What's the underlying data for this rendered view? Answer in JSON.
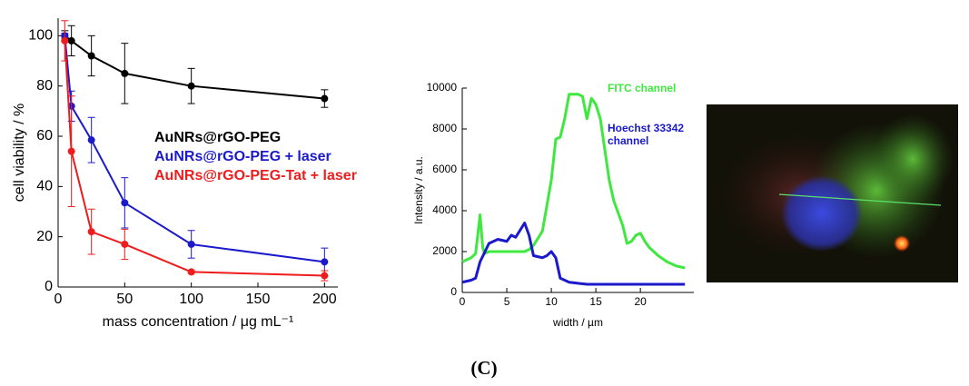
{
  "chart_data": [
    {
      "type": "line",
      "x": [
        5,
        10,
        25,
        50,
        100,
        200
      ],
      "xlabel": "mass concentration / μg mL⁻¹",
      "ylabel": "cell viability / %",
      "xlim": [
        0,
        210
      ],
      "ylim": [
        0,
        107
      ],
      "xticks": [
        0,
        50,
        100,
        150,
        200
      ],
      "yticks": [
        0,
        20,
        40,
        60,
        80,
        100
      ],
      "markers": true,
      "series": [
        {
          "name": "AuNRs@rGO-PEG",
          "color": "#000000",
          "values": [
            100,
            98,
            92,
            85,
            80,
            75
          ],
          "errors": [
            2,
            6,
            8,
            12,
            7,
            3.5
          ]
        },
        {
          "name": "AuNRs@rGO-PEG + laser",
          "color": "#1a1acc",
          "values": [
            100,
            72,
            58.5,
            33.5,
            17,
            10
          ],
          "errors": [
            1,
            6,
            9,
            10,
            5.5,
            5.5
          ]
        },
        {
          "name": "AuNRs@rGO-PEG-Tat + laser",
          "color": "#ee1c1c",
          "values": [
            98,
            54,
            22,
            17,
            6,
            4.5
          ],
          "errors": [
            8,
            22,
            9,
            6,
            0.5,
            2
          ]
        }
      ]
    },
    {
      "type": "line",
      "xlabel": "width / µm",
      "ylabel": "Intensity  / a.u.",
      "xlim": [
        0,
        26
      ],
      "ylim": [
        0,
        10000
      ],
      "xticks": [
        0,
        5,
        10,
        15,
        20
      ],
      "yticks": [
        0,
        2000,
        4000,
        6000,
        8000,
        10000
      ],
      "markers": false,
      "series": [
        {
          "name": "FITC channel",
          "color": "#3fe83f",
          "x": [
            0,
            0.5,
            1,
            1.5,
            2,
            2.3,
            2.5,
            3,
            4,
            5,
            6,
            7,
            7.5,
            8,
            9,
            10,
            10.5,
            11,
            11.5,
            12,
            13,
            13.5,
            14,
            14.5,
            15,
            15.5,
            16,
            16.5,
            17,
            18,
            18.5,
            19,
            19.5,
            20,
            20.5,
            21,
            22,
            23,
            24,
            25
          ],
          "values": [
            1500,
            1600,
            1700,
            1900,
            3800,
            2200,
            1900,
            2000,
            2000,
            2000,
            2000,
            2000,
            2100,
            2300,
            3000,
            5500,
            7500,
            7600,
            8500,
            9700,
            9700,
            9600,
            8500,
            9500,
            9200,
            8500,
            7000,
            5500,
            4500,
            3300,
            2400,
            2500,
            2800,
            2900,
            2500,
            2200,
            1800,
            1500,
            1300,
            1200
          ]
        },
        {
          "name": "Hoechst 33342 channel",
          "color": "#1a1acc",
          "x": [
            0,
            1,
            1.5,
            2,
            3,
            4,
            5,
            5.5,
            6,
            7,
            7.5,
            8,
            9,
            9.5,
            10,
            10.5,
            11,
            12,
            14,
            18,
            25
          ],
          "values": [
            500,
            600,
            700,
            1500,
            2400,
            2600,
            2500,
            2800,
            2700,
            3400,
            2800,
            1800,
            1700,
            1800,
            2000,
            1700,
            700,
            500,
            400,
            400,
            400
          ]
        }
      ]
    }
  ],
  "caption": "(C)"
}
